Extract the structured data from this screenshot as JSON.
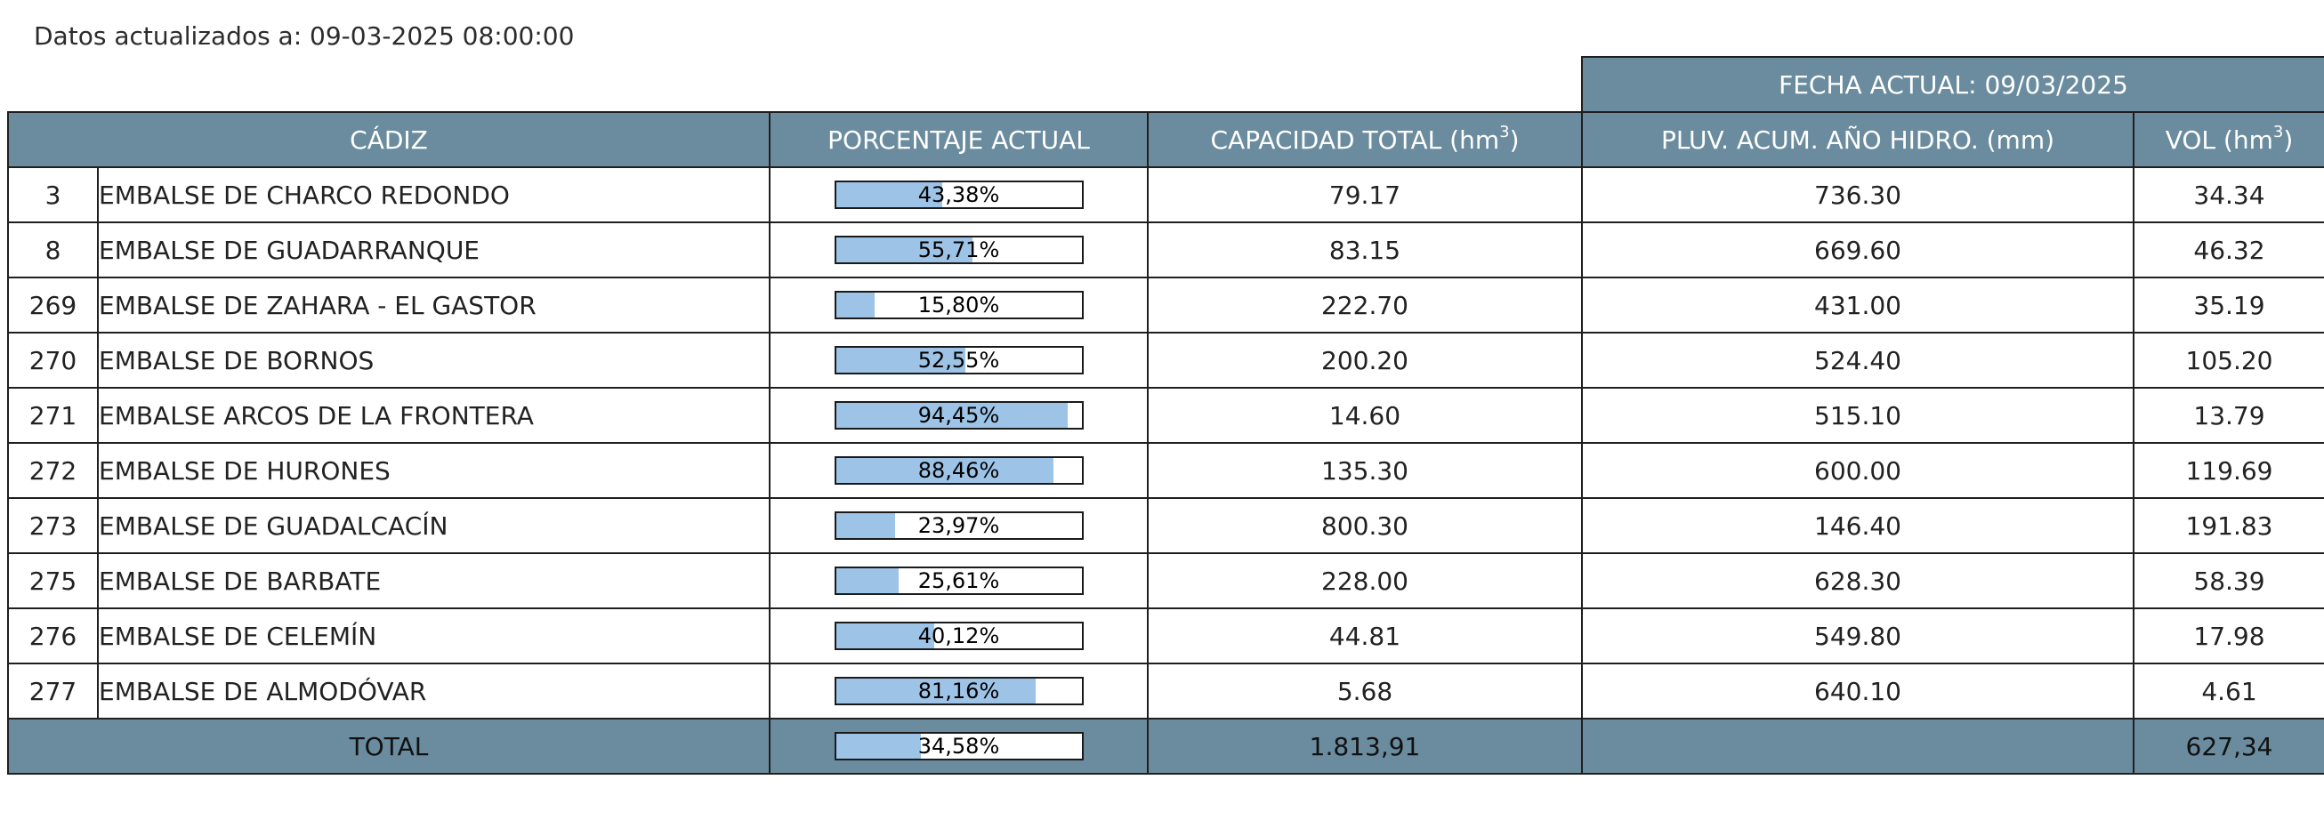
{
  "updated_text": "Datos actualizados a: 09-03-2025 08:00:00",
  "fecha_actual": "FECHA ACTUAL: 09/03/2025",
  "headers": {
    "province": "CÁDIZ",
    "porcentaje": "PORCENTAJE ACTUAL",
    "capacidad": "CAPACIDAD TOTAL (hm",
    "capacidad_sup": "3",
    "capacidad_close": ")",
    "pluv": "PLUV. ACUM. AÑO HIDRO. (mm)",
    "vol": "VOL (hm",
    "vol_sup": "3",
    "vol_close": ")"
  },
  "colors": {
    "header_bg": "#6a8c9e",
    "bar_fill": "#9dc3e6"
  },
  "rows": [
    {
      "id": "3",
      "name": "EMBALSE DE CHARCO REDONDO",
      "pct_label": "43,38%",
      "pct": 43.38,
      "capacidad": "79.17",
      "pluv": "736.30",
      "vol": "34.34"
    },
    {
      "id": "8",
      "name": "EMBALSE DE GUADARRANQUE",
      "pct_label": "55,71%",
      "pct": 55.71,
      "capacidad": "83.15",
      "pluv": "669.60",
      "vol": "46.32"
    },
    {
      "id": "269",
      "name": "EMBALSE DE ZAHARA - EL GASTOR",
      "pct_label": "15,80%",
      "pct": 15.8,
      "capacidad": "222.70",
      "pluv": "431.00",
      "vol": "35.19"
    },
    {
      "id": "270",
      "name": "EMBALSE DE BORNOS",
      "pct_label": "52,55%",
      "pct": 52.55,
      "capacidad": "200.20",
      "pluv": "524.40",
      "vol": "105.20"
    },
    {
      "id": "271",
      "name": "EMBALSE ARCOS DE LA FRONTERA",
      "pct_label": "94,45%",
      "pct": 94.45,
      "capacidad": "14.60",
      "pluv": "515.10",
      "vol": "13.79"
    },
    {
      "id": "272",
      "name": "EMBALSE DE HURONES",
      "pct_label": "88,46%",
      "pct": 88.46,
      "capacidad": "135.30",
      "pluv": "600.00",
      "vol": "119.69"
    },
    {
      "id": "273",
      "name": "EMBALSE DE GUADALCACÍN",
      "pct_label": "23,97%",
      "pct": 23.97,
      "capacidad": "800.30",
      "pluv": "146.40",
      "vol": "191.83"
    },
    {
      "id": "275",
      "name": "EMBALSE DE BARBATE",
      "pct_label": "25,61%",
      "pct": 25.61,
      "capacidad": "228.00",
      "pluv": "628.30",
      "vol": "58.39"
    },
    {
      "id": "276",
      "name": "EMBALSE DE CELEMÍN",
      "pct_label": "40,12%",
      "pct": 40.12,
      "capacidad": "44.81",
      "pluv": "549.80",
      "vol": "17.98"
    },
    {
      "id": "277",
      "name": "EMBALSE DE ALMODÓVAR",
      "pct_label": "81,16%",
      "pct": 81.16,
      "capacidad": "5.68",
      "pluv": "640.10",
      "vol": "4.61"
    }
  ],
  "total": {
    "label": "TOTAL",
    "pct_label": "34,58%",
    "pct": 34.58,
    "capacidad": "1.813,91",
    "pluv": "",
    "vol": "627,34"
  }
}
